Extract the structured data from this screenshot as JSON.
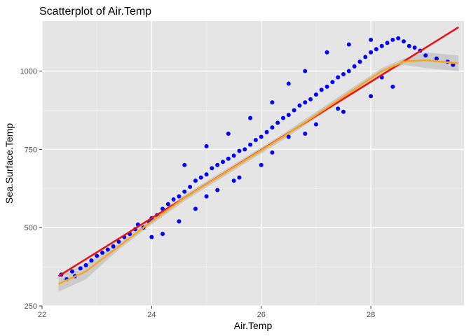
{
  "chart_data": {
    "type": "scatter",
    "title": "Scatterplot of Air.Temp",
    "xlabel": "Air.Temp",
    "ylabel": "Sea.Surface.Temp",
    "xlim": [
      22.0,
      29.7
    ],
    "ylim": [
      250,
      1160
    ],
    "x_ticks": [
      22,
      24,
      26,
      28
    ],
    "y_ticks": [
      250,
      500,
      750,
      1000
    ],
    "x_tick_labels": [
      "22",
      "24",
      "26",
      "28"
    ],
    "y_tick_labels": [
      "250",
      "500",
      "750",
      "1000"
    ],
    "grid": true,
    "colors": {
      "panel": "#e5e5e5",
      "grid_major": "#ffffff",
      "points": "#0000ff",
      "linear_fit": "#ee1111",
      "smooth_fit": "#f5a623",
      "confidence_band": "#bdbdbd"
    },
    "series": [
      {
        "type": "scatter",
        "points": [
          [
            22.35,
            350
          ],
          [
            22.45,
            335
          ],
          [
            22.55,
            360
          ],
          [
            22.6,
            345
          ],
          [
            22.7,
            370
          ],
          [
            22.8,
            380
          ],
          [
            22.9,
            395
          ],
          [
            23.0,
            410
          ],
          [
            23.1,
            420
          ],
          [
            23.2,
            430
          ],
          [
            23.3,
            440
          ],
          [
            23.4,
            455
          ],
          [
            23.5,
            470
          ],
          [
            23.6,
            480
          ],
          [
            23.7,
            495
          ],
          [
            23.75,
            510
          ],
          [
            23.85,
            500
          ],
          [
            23.95,
            520
          ],
          [
            24.0,
            530
          ],
          [
            24.1,
            540
          ],
          [
            24.2,
            560
          ],
          [
            24.3,
            575
          ],
          [
            24.4,
            590
          ],
          [
            24.5,
            600
          ],
          [
            24.6,
            615
          ],
          [
            24.7,
            630
          ],
          [
            24.8,
            650
          ],
          [
            24.9,
            660
          ],
          [
            25.0,
            670
          ],
          [
            25.1,
            690
          ],
          [
            25.2,
            700
          ],
          [
            25.3,
            710
          ],
          [
            25.4,
            720
          ],
          [
            25.5,
            730
          ],
          [
            25.6,
            745
          ],
          [
            25.7,
            750
          ],
          [
            25.8,
            765
          ],
          [
            25.9,
            780
          ],
          [
            26.0,
            790
          ],
          [
            26.1,
            805
          ],
          [
            26.2,
            820
          ],
          [
            26.3,
            835
          ],
          [
            26.4,
            850
          ],
          [
            26.5,
            860
          ],
          [
            26.6,
            875
          ],
          [
            26.7,
            890
          ],
          [
            26.8,
            900
          ],
          [
            26.9,
            910
          ],
          [
            27.0,
            925
          ],
          [
            27.1,
            940
          ],
          [
            27.2,
            950
          ],
          [
            27.3,
            965
          ],
          [
            27.4,
            980
          ],
          [
            27.5,
            990
          ],
          [
            27.6,
            1000
          ],
          [
            27.7,
            1015
          ],
          [
            27.8,
            1030
          ],
          [
            27.9,
            1045
          ],
          [
            28.0,
            1060
          ],
          [
            28.1,
            1070
          ],
          [
            28.2,
            1080
          ],
          [
            28.3,
            1090
          ],
          [
            28.4,
            1100
          ],
          [
            28.5,
            1105
          ],
          [
            28.6,
            1095
          ],
          [
            28.7,
            1080
          ],
          [
            28.8,
            1075
          ],
          [
            28.9,
            1065
          ],
          [
            29.0,
            1050
          ],
          [
            29.2,
            1040
          ],
          [
            29.4,
            1030
          ],
          [
            29.5,
            1020
          ],
          [
            24.6,
            700
          ],
          [
            25.0,
            760
          ],
          [
            25.4,
            800
          ],
          [
            25.8,
            850
          ],
          [
            26.2,
            900
          ],
          [
            26.5,
            960
          ],
          [
            26.8,
            1000
          ],
          [
            27.2,
            1060
          ],
          [
            27.6,
            1085
          ],
          [
            28.0,
            1100
          ],
          [
            25.0,
            600
          ],
          [
            25.5,
            650
          ],
          [
            26.0,
            700
          ],
          [
            26.5,
            790
          ],
          [
            27.0,
            830
          ],
          [
            27.5,
            870
          ],
          [
            28.0,
            920
          ],
          [
            28.4,
            950
          ],
          [
            24.0,
            470
          ],
          [
            24.2,
            480
          ],
          [
            24.5,
            520
          ],
          [
            24.8,
            560
          ],
          [
            25.2,
            620
          ],
          [
            25.6,
            660
          ],
          [
            26.2,
            740
          ],
          [
            26.8,
            800
          ],
          [
            27.4,
            880
          ],
          [
            28.2,
            980
          ]
        ]
      },
      {
        "type": "line",
        "curve": "linear",
        "points": [
          [
            22.3,
            345
          ],
          [
            29.6,
            1140
          ]
        ]
      },
      {
        "type": "line",
        "curve": "smooth",
        "points": [
          [
            22.3,
            320
          ],
          [
            22.8,
            360
          ],
          [
            23.4,
            440
          ],
          [
            24.0,
            520
          ],
          [
            24.6,
            595
          ],
          [
            25.2,
            660
          ],
          [
            25.8,
            725
          ],
          [
            26.4,
            790
          ],
          [
            27.0,
            860
          ],
          [
            27.6,
            930
          ],
          [
            28.2,
            1000
          ],
          [
            28.6,
            1030
          ],
          [
            29.0,
            1035
          ],
          [
            29.6,
            1025
          ]
        ]
      }
    ]
  }
}
